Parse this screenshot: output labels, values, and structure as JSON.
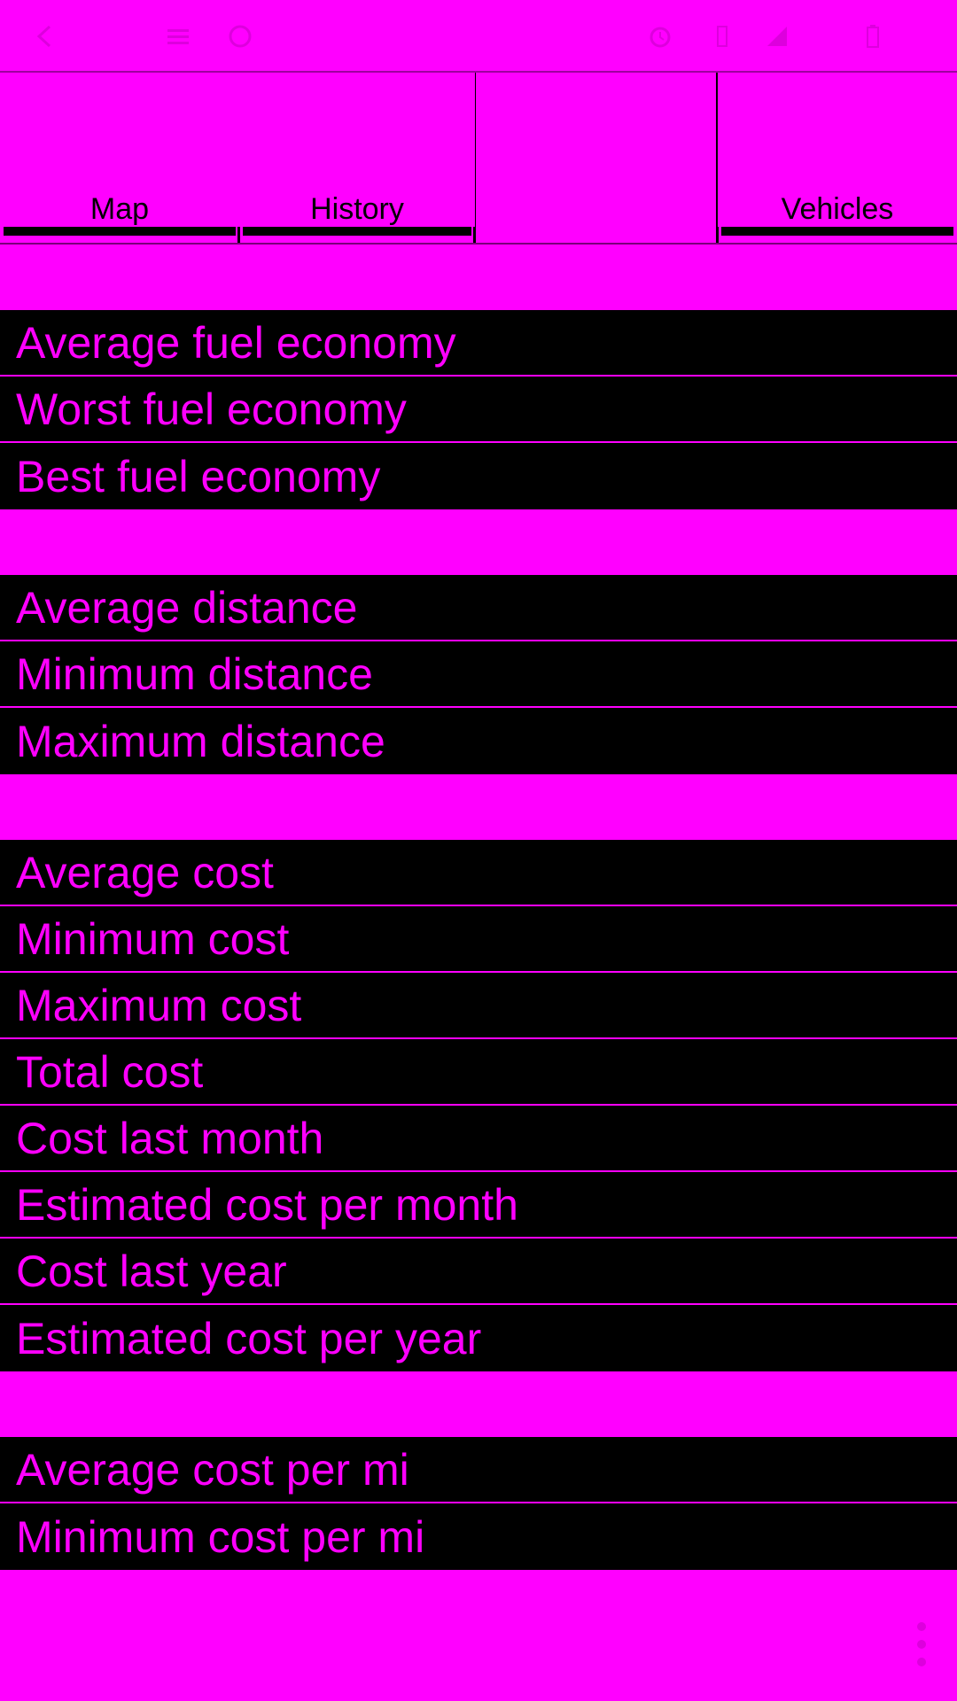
{
  "status_bar": {
    "icons": [
      "back-icon",
      "menu-icon",
      "circle-icon",
      "alarm-icon",
      "vibrate-icon",
      "signal-icon",
      "battery-icon"
    ],
    "time": ""
  },
  "tabs": [
    {
      "label": "Map"
    },
    {
      "label": "History"
    },
    {
      "label": ""
    },
    {
      "label": "Vehicles"
    }
  ],
  "sections": [
    {
      "rows": [
        "Average fuel economy",
        "Worst fuel economy",
        "Best fuel economy"
      ]
    },
    {
      "rows": [
        "Average distance",
        "Minimum distance",
        "Maximum distance"
      ]
    },
    {
      "rows": [
        "Average cost",
        "Minimum cost",
        "Maximum cost",
        "Total cost",
        "Cost last month",
        "Estimated cost per month",
        "Cost last year",
        "Estimated cost per year"
      ]
    },
    {
      "rows": [
        "Average cost per mi",
        "Minimum cost per mi"
      ]
    }
  ],
  "colors": {
    "background": "#ff00ff",
    "row_background": "#000000",
    "row_text": "#ff00ff"
  }
}
